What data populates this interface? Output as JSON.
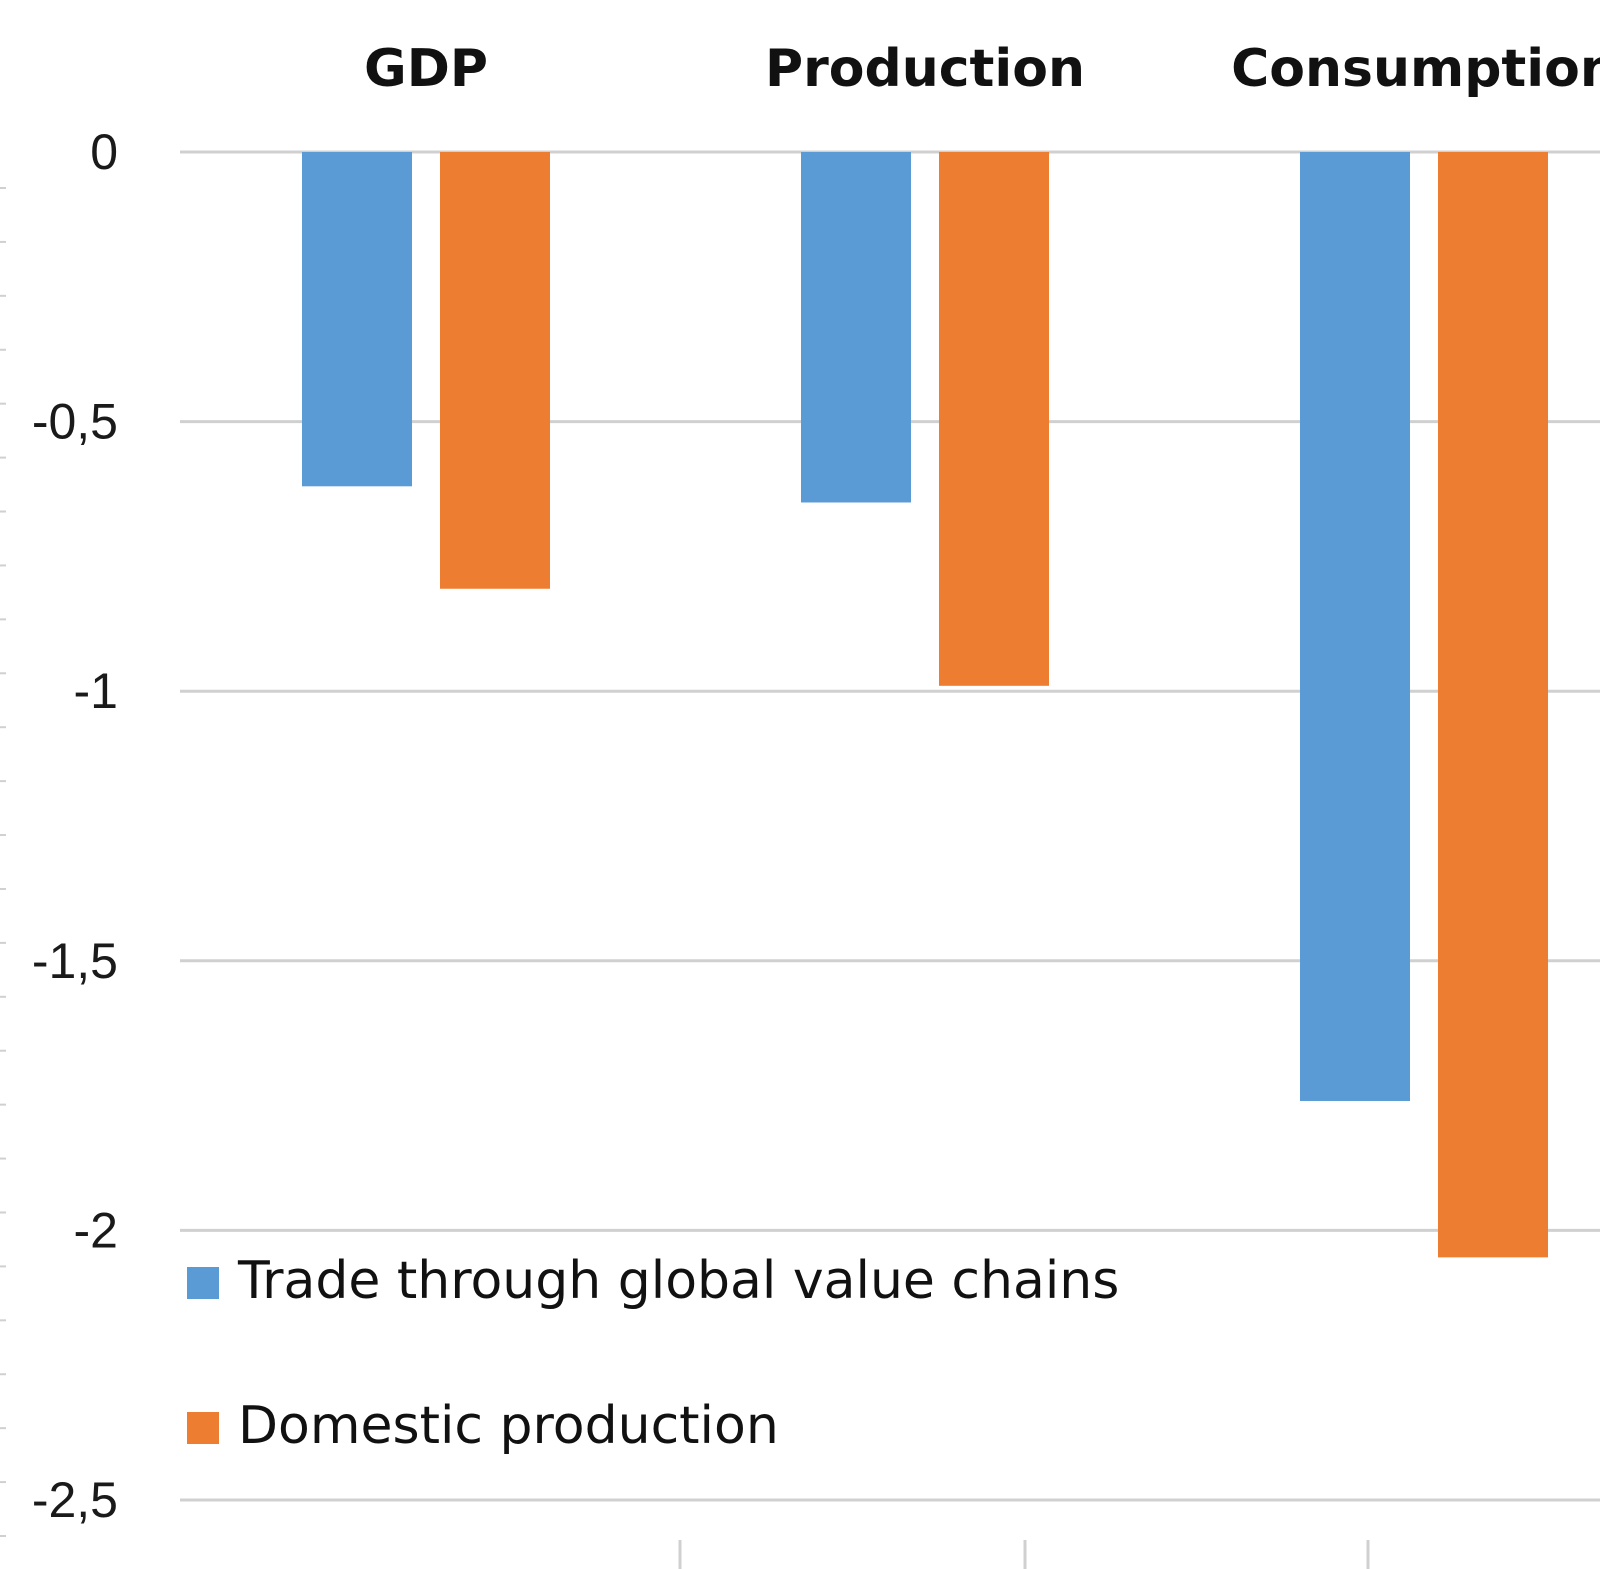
{
  "chart_data": {
    "type": "bar",
    "title": "",
    "xlabel": "",
    "ylabel": "",
    "categories": [
      "GDP",
      "Production",
      "Consumption"
    ],
    "category_label_position": "top",
    "series": [
      {
        "name": "Trade through global value chains",
        "color": "#5b9bd5",
        "values": [
          -0.62,
          -0.65,
          -1.76
        ]
      },
      {
        "name": "Domestic production",
        "color": "#ed7d31",
        "values": [
          -0.81,
          -0.99,
          -2.05
        ]
      }
    ],
    "ylim": [
      -2.5,
      0
    ],
    "yticks": [
      0,
      -0.5,
      -1,
      -1.5,
      -2,
      -2.5
    ],
    "ytick_labels": [
      "0",
      "-0,5",
      "-1",
      "-1,5",
      "-2",
      "-2,5"
    ],
    "grid": true,
    "legend_position": "bottom-left"
  }
}
